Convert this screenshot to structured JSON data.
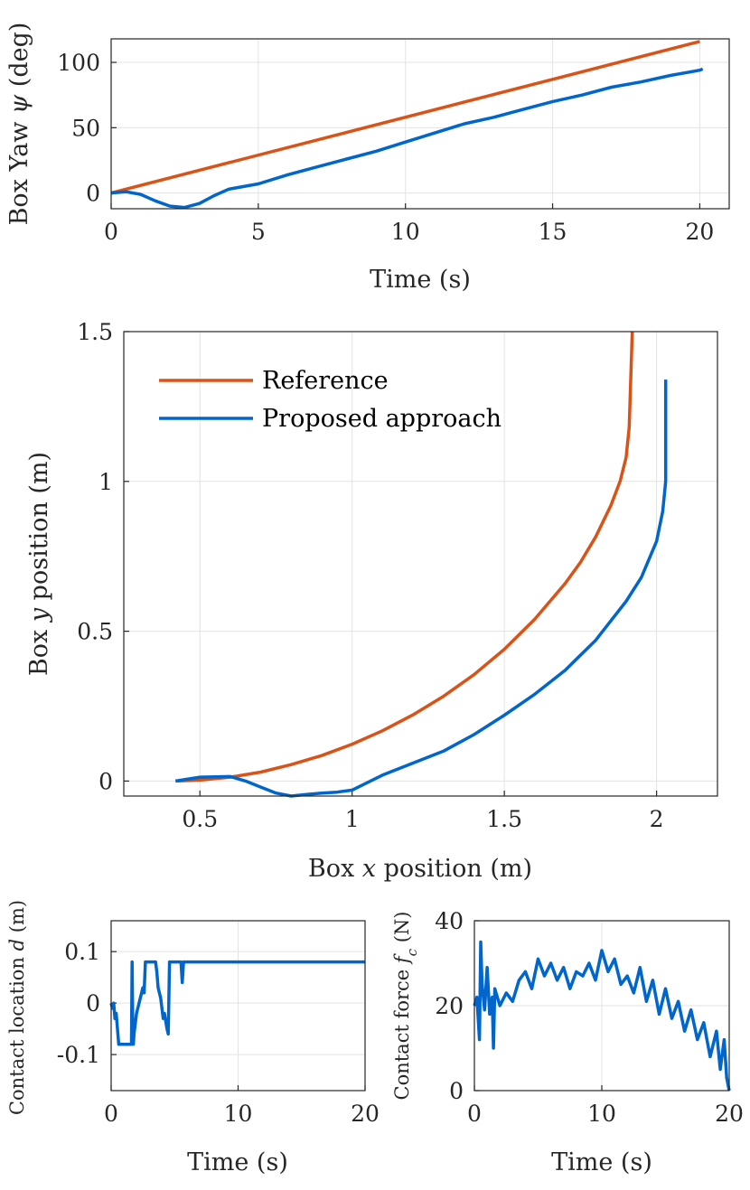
{
  "chart_data": [
    {
      "id": "yaw",
      "type": "line",
      "xlabel": "Time (s)",
      "ylabel": "Box Yaw ψ (deg)",
      "xlim": [
        0,
        21
      ],
      "ylim": [
        -12,
        118
      ],
      "xticks": [
        0,
        5,
        10,
        15,
        20
      ],
      "xtick_labels": [
        "0",
        "5",
        "10",
        "15",
        "20"
      ],
      "yticks": [
        0,
        50,
        100
      ],
      "ytick_labels": [
        "0",
        "50",
        "100"
      ],
      "grid": true,
      "series": [
        {
          "name": "Reference",
          "color": "#d95319",
          "x": [
            0,
            20
          ],
          "y": [
            0,
            116
          ]
        },
        {
          "name": "Proposed approach",
          "color": "#0066cc",
          "x": [
            0,
            0.5,
            1,
            1.5,
            2,
            2.5,
            3,
            3.5,
            4,
            5,
            6,
            7,
            8,
            9,
            10,
            11,
            12,
            13,
            14,
            15,
            16,
            17,
            18,
            19,
            20,
            20.1
          ],
          "y": [
            0,
            1,
            -1,
            -6,
            -10,
            -11,
            -8,
            -2,
            3,
            7,
            14,
            20,
            26,
            32,
            39,
            46,
            53,
            58,
            64,
            70,
            75,
            81,
            85,
            90,
            94,
            95
          ]
        }
      ]
    },
    {
      "id": "xy",
      "type": "line",
      "xlabel": "Box x position (m)",
      "ylabel": "Box y position (m)",
      "xlim": [
        0.25,
        2.2
      ],
      "ylim": [
        -0.05,
        1.5
      ],
      "xticks": [
        0.5,
        1,
        1.5,
        2
      ],
      "xtick_labels": [
        "0.5",
        "1",
        "1.5",
        "2"
      ],
      "yticks": [
        0,
        0.5,
        1,
        1.5
      ],
      "ytick_labels": [
        "0",
        "0.5",
        "1",
        "1.5"
      ],
      "grid": true,
      "legend": {
        "placement": "top-left",
        "entries": [
          "Reference",
          "Proposed approach"
        ]
      },
      "series": [
        {
          "name": "Reference",
          "color": "#d95319",
          "x": [
            0.42,
            0.5,
            0.6,
            0.7,
            0.8,
            0.9,
            1.0,
            1.1,
            1.2,
            1.3,
            1.4,
            1.5,
            1.6,
            1.7,
            1.75,
            1.8,
            1.85,
            1.88,
            1.9,
            1.91,
            1.92
          ],
          "y": [
            0.0,
            0.003,
            0.013,
            0.03,
            0.055,
            0.085,
            0.123,
            0.168,
            0.221,
            0.283,
            0.355,
            0.44,
            0.54,
            0.66,
            0.73,
            0.815,
            0.92,
            1.0,
            1.08,
            1.18,
            1.5
          ]
        },
        {
          "name": "Proposed approach",
          "color": "#0066cc",
          "x": [
            0.42,
            0.5,
            0.6,
            0.65,
            0.7,
            0.75,
            0.8,
            0.85,
            0.9,
            0.95,
            1.0,
            1.1,
            1.2,
            1.3,
            1.4,
            1.5,
            1.6,
            1.7,
            1.8,
            1.9,
            1.95,
            2.0,
            2.02,
            2.03,
            2.03
          ],
          "y": [
            0.0,
            0.013,
            0.015,
            0.0,
            -0.02,
            -0.04,
            -0.05,
            -0.045,
            -0.04,
            -0.037,
            -0.03,
            0.02,
            0.06,
            0.1,
            0.155,
            0.22,
            0.29,
            0.37,
            0.47,
            0.6,
            0.68,
            0.8,
            0.9,
            1.0,
            1.34
          ]
        }
      ]
    },
    {
      "id": "contact-location",
      "type": "line",
      "xlabel": "Time (s)",
      "ylabel": "Contact location d (m)",
      "xlim": [
        0,
        20
      ],
      "ylim": [
        -0.17,
        0.16
      ],
      "xticks": [
        0,
        10,
        20
      ],
      "xtick_labels": [
        "0",
        "10",
        "20"
      ],
      "yticks": [
        -0.1,
        0,
        0.1
      ],
      "ytick_labels": [
        "-0.1",
        "0",
        "0.1"
      ],
      "grid": true,
      "series": [
        {
          "name": "Proposed approach",
          "color": "#0066cc",
          "x": [
            0,
            0.1,
            0.2,
            0.3,
            0.4,
            0.5,
            0.6,
            1.6,
            1.65,
            1.7,
            1.75,
            1.8,
            2.0,
            2.2,
            2.4,
            2.5,
            2.6,
            2.7,
            3.5,
            3.6,
            3.7,
            3.8,
            3.9,
            4.0,
            4.1,
            4.2,
            4.4,
            4.5,
            4.6,
            4.7,
            4.8,
            5.0,
            5.2,
            5.5,
            5.6,
            5.7,
            5.8,
            6.0,
            20
          ],
          "y": [
            0,
            -0.01,
            0.0,
            -0.03,
            -0.02,
            -0.05,
            -0.08,
            -0.08,
            0.08,
            -0.04,
            -0.08,
            -0.06,
            -0.02,
            0.0,
            0.02,
            0.03,
            0.02,
            0.08,
            0.08,
            0.06,
            0.03,
            0.02,
            0.01,
            -0.01,
            -0.03,
            -0.02,
            -0.05,
            -0.06,
            0.08,
            0.08,
            0.08,
            0.08,
            0.08,
            0.08,
            0.04,
            0.08,
            0.08,
            0.08,
            0.08
          ]
        }
      ]
    },
    {
      "id": "contact-force",
      "type": "line",
      "xlabel": "Time (s)",
      "ylabel": "Contact force fc (N)",
      "xlim": [
        0,
        20
      ],
      "ylim": [
        0,
        40
      ],
      "xticks": [
        0,
        10,
        20
      ],
      "xtick_labels": [
        "0",
        "10",
        "20"
      ],
      "yticks": [
        0,
        20,
        40
      ],
      "ytick_labels": [
        "0",
        "20",
        "40"
      ],
      "grid": true,
      "series": [
        {
          "name": "Proposed approach",
          "color": "#0066cc",
          "x": [
            0,
            0.2,
            0.4,
            0.5,
            0.6,
            0.8,
            1.0,
            1.2,
            1.4,
            1.5,
            1.6,
            1.8,
            2.0,
            2.5,
            3.0,
            3.5,
            4.0,
            4.5,
            5.0,
            5.5,
            6.0,
            6.5,
            7.0,
            7.5,
            8.0,
            8.5,
            9.0,
            9.5,
            10.0,
            10.5,
            11.0,
            11.5,
            12.0,
            12.5,
            13.0,
            13.5,
            14.0,
            14.5,
            15.0,
            15.5,
            16.0,
            16.5,
            17.0,
            17.5,
            18.0,
            18.5,
            19.0,
            19.3,
            19.6,
            19.8,
            20.0
          ],
          "y": [
            20,
            22,
            12,
            35,
            25,
            19,
            29,
            18,
            22,
            10,
            24,
            22,
            20,
            23,
            21,
            26,
            28,
            24,
            31,
            27,
            30,
            26,
            29,
            24,
            28,
            27,
            30,
            26,
            33,
            28,
            31,
            25,
            27,
            23,
            29,
            21,
            26,
            18,
            24,
            17,
            21,
            14,
            19,
            12,
            16,
            8,
            14,
            5,
            12,
            3,
            0
          ]
        }
      ]
    }
  ]
}
